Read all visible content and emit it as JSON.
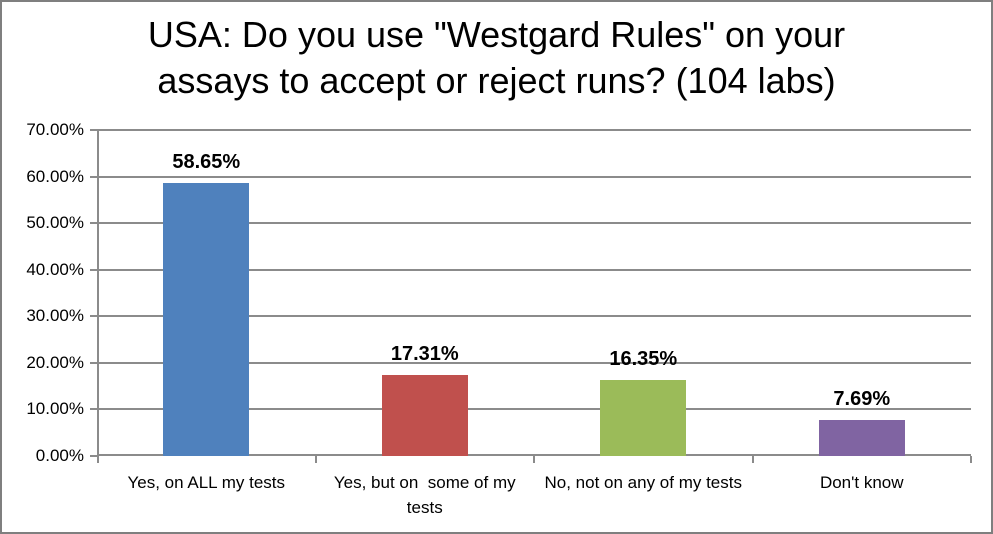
{
  "window": {
    "background": "#ffffff",
    "border_color": "#7f7f7f"
  },
  "header": {
    "title_lines": [
      "USA: Do you use \"Westgard Rules\" on your",
      "assays to accept or reject runs? (104 labs)"
    ]
  },
  "chart_data": {
    "type": "bar",
    "title": "USA: Do you use \"Westgard Rules\" on your assays to accept or reject runs? (104 labs)",
    "categories": [
      "Yes, on ALL my tests",
      "Yes, but on  some of my tests",
      "No, not on any of my tests",
      "Don't know"
    ],
    "values": [
      58.65,
      17.31,
      16.35,
      7.69
    ],
    "data_labels": [
      "58.65%",
      "17.31%",
      "16.35%",
      "7.69%"
    ],
    "bar_colors": [
      "#4F81BD",
      "#C0504D",
      "#9BBB59",
      "#8064A2"
    ],
    "xlabel": "",
    "ylabel": "",
    "ylim": [
      0,
      70
    ],
    "ytick_step": 10,
    "ytick_labels": [
      "0.00%",
      "10.00%",
      "20.00%",
      "30.00%",
      "40.00%",
      "50.00%",
      "60.00%",
      "70.00%"
    ],
    "grid": true,
    "legend": false,
    "axis_color": "#8b8b8b",
    "label_color": "#000000"
  }
}
